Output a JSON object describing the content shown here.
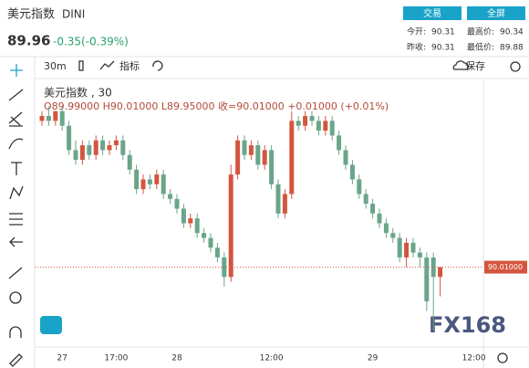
{
  "header": {
    "name": "美元指数",
    "code": "DINI",
    "price": "89.96",
    "change": "-0.35(-0.39%)",
    "buttons": [
      "交易",
      "全屏"
    ],
    "stats": [
      [
        "今开:",
        "90.31"
      ],
      [
        "最高价:",
        "90.34"
      ],
      [
        "昨收:",
        "90.31"
      ],
      [
        "最低价:",
        "89.88"
      ]
    ]
  },
  "toolbar": {
    "interval": "30m",
    "indicators": "指标",
    "save": "保存"
  },
  "legend": {
    "title": "美元指数 , 30",
    "ohlc": "O89.99000  H90.01000  L89.95000  收=90.01000  +0.01000 (+0.01%)"
  },
  "watermark": "FX168",
  "chart_data": {
    "type": "candlestick",
    "categories": [
      null,
      null,
      null,
      "27",
      null,
      null,
      null,
      null,
      null,
      null,
      null,
      "17:00",
      null,
      null,
      null,
      null,
      null,
      null,
      null,
      null,
      "28",
      null,
      null,
      null,
      null,
      null,
      null,
      null,
      null,
      null,
      null,
      null,
      null,
      null,
      "12:00",
      null,
      null,
      null,
      null,
      null,
      null,
      null,
      null,
      null,
      null,
      null,
      null,
      null,
      null,
      "29",
      null,
      null,
      null,
      null,
      null,
      null,
      null,
      null,
      null,
      null,
      null,
      null,
      null,
      null,
      "12:00"
    ],
    "open": [
      90.31,
      90.32,
      90.31,
      90.33,
      90.3,
      90.25,
      90.23,
      90.26,
      90.24,
      90.27,
      90.25,
      90.26,
      90.27,
      90.24,
      90.21,
      90.17,
      90.19,
      90.18,
      90.2,
      90.16,
      90.15,
      90.13,
      90.1,
      90.11,
      90.08,
      90.07,
      90.05,
      90.03,
      89.99,
      90.2,
      90.27,
      90.24,
      90.26,
      90.22,
      90.25,
      90.18,
      90.12,
      90.16,
      90.31,
      90.3,
      90.32,
      90.31,
      90.29,
      90.31,
      90.28,
      90.25,
      90.22,
      90.19,
      90.16,
      90.14,
      90.12,
      90.1,
      90.08,
      90.07,
      90.03,
      90.06,
      90.04,
      90.03,
      90.03,
      89.99,
      null,
      null,
      null,
      null,
      null
    ],
    "high": [
      90.33,
      90.34,
      90.33,
      90.34,
      90.31,
      90.27,
      90.27,
      90.27,
      90.28,
      90.28,
      90.27,
      90.28,
      90.28,
      90.25,
      90.22,
      90.2,
      90.2,
      90.21,
      90.21,
      90.17,
      90.16,
      90.14,
      90.12,
      90.12,
      90.09,
      90.08,
      90.06,
      90.04,
      90.22,
      90.28,
      90.28,
      90.27,
      90.27,
      90.26,
      90.26,
      90.19,
      90.17,
      90.33,
      90.32,
      90.33,
      90.33,
      90.32,
      90.32,
      90.32,
      90.29,
      90.26,
      90.23,
      90.2,
      90.17,
      90.15,
      90.13,
      90.11,
      90.09,
      90.08,
      90.07,
      90.07,
      90.05,
      90.04,
      90.04,
      90.01,
      null,
      null,
      null,
      null,
      null
    ],
    "low": [
      90.3,
      90.3,
      90.3,
      90.29,
      90.24,
      90.22,
      90.22,
      90.23,
      90.23,
      90.24,
      90.24,
      90.25,
      90.23,
      90.2,
      90.16,
      90.16,
      90.17,
      90.17,
      90.15,
      90.14,
      90.12,
      90.09,
      90.09,
      90.07,
      90.06,
      90.04,
      90.02,
      89.97,
      89.98,
      90.19,
      90.23,
      90.23,
      90.21,
      90.21,
      90.17,
      90.11,
      90.11,
      90.15,
      90.29,
      90.29,
      90.3,
      90.28,
      90.28,
      90.27,
      90.24,
      90.21,
      90.18,
      90.15,
      90.13,
      90.11,
      90.09,
      90.07,
      90.06,
      90.02,
      90.01,
      90.03,
      90.01,
      89.92,
      89.88,
      89.95,
      null,
      null,
      null,
      null,
      null
    ],
    "close": [
      90.32,
      90.31,
      90.33,
      90.3,
      90.25,
      90.23,
      90.26,
      90.24,
      90.27,
      90.25,
      90.26,
      90.27,
      90.24,
      90.21,
      90.17,
      90.19,
      90.18,
      90.2,
      90.16,
      90.15,
      90.13,
      90.1,
      90.11,
      90.08,
      90.07,
      90.05,
      90.03,
      89.99,
      90.2,
      90.27,
      90.24,
      90.26,
      90.22,
      90.25,
      90.18,
      90.12,
      90.16,
      90.31,
      90.3,
      90.32,
      90.31,
      90.29,
      90.31,
      90.28,
      90.25,
      90.22,
      90.19,
      90.16,
      90.14,
      90.12,
      90.1,
      90.08,
      90.07,
      90.03,
      90.06,
      90.04,
      90.03,
      89.94,
      89.99,
      90.01,
      null,
      null,
      null,
      null,
      null
    ],
    "up_color": "#d4553f",
    "down_color": "#6aa58a",
    "last_price_label": "90.01000",
    "ylim": [
      89.85,
      90.38
    ]
  }
}
